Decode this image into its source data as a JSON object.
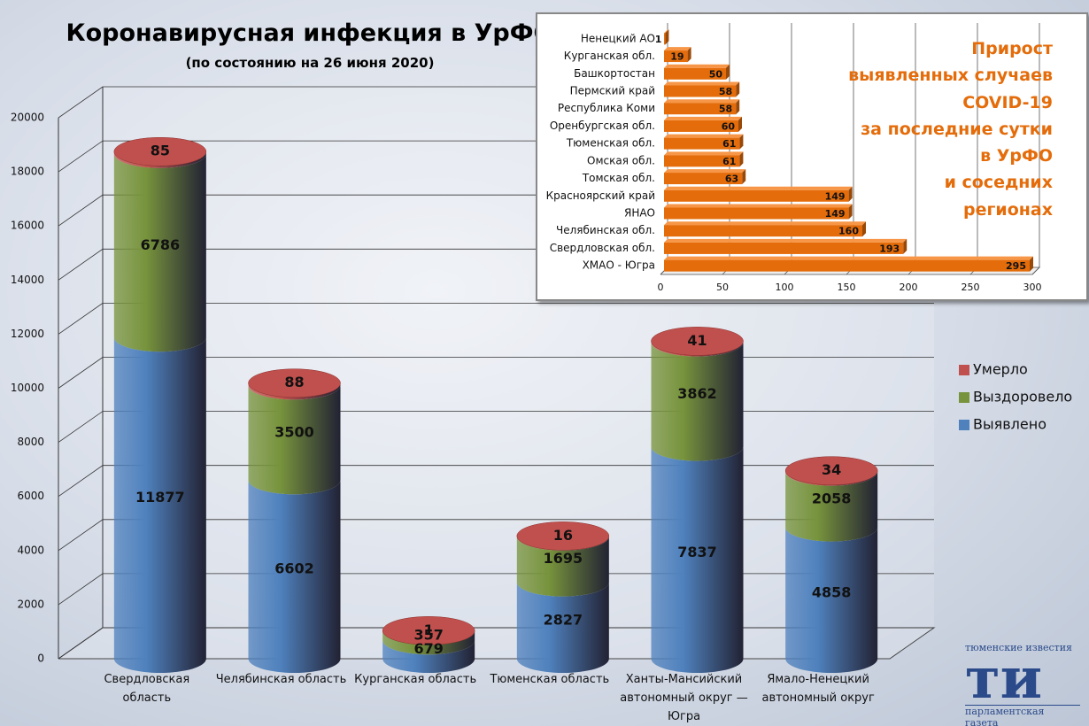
{
  "chart_data": [
    {
      "type": "bar3d_stacked",
      "title": "Коронавирусная инфекция в УрФО",
      "subtitle": "(по состоянию на 26 июня 2020)",
      "categories": [
        "Свердловская область",
        "Челябинская область",
        "Курганская область",
        "Тюменская область",
        "Ханты-Мансийский автономный округ — Югра",
        "Ямало-Ненецкий автономный округ"
      ],
      "series": [
        {
          "name": "Выявлено",
          "color": "#4f81bd",
          "values": [
            11877,
            6602,
            679,
            2827,
            7837,
            4858
          ]
        },
        {
          "name": "Выздоровело",
          "color": "#77933c",
          "values": [
            6786,
            3500,
            357,
            1695,
            3862,
            2058
          ]
        },
        {
          "name": "Умерло",
          "color": "#c0504d",
          "values": [
            85,
            88,
            1,
            16,
            41,
            34
          ]
        }
      ],
      "ylim": [
        0,
        20000
      ],
      "yticks": [
        0,
        2000,
        4000,
        6000,
        8000,
        10000,
        12000,
        14000,
        16000,
        18000,
        20000
      ],
      "grid": true,
      "legend": "right"
    },
    {
      "type": "hbar3d",
      "title": "Прирост\nвыявленных случаев\nCOVID-19\nза последние сутки\nв УрФО\nи соседних\nрегионах",
      "categories": [
        "Ненецкий АО",
        "Курганская обл.",
        "Башкортостан",
        "Пермский край",
        "Республика Коми",
        "Оренбургская обл.",
        "Тюменская обл.",
        "Омская обл.",
        "Томская обл.",
        "Красноярский край",
        "ЯНАО",
        "Челябинская обл.",
        "Свердловская обл.",
        "ХМАО - Югра"
      ],
      "values": [
        1,
        19,
        50,
        58,
        58,
        60,
        61,
        61,
        63,
        149,
        149,
        160,
        193,
        295
      ],
      "color": "#e46c0a",
      "xlim": [
        0,
        300
      ],
      "xticks": [
        0,
        50,
        100,
        150,
        200,
        250,
        300
      ],
      "grid": true
    }
  ],
  "logo": {
    "top": "тюменские известия",
    "mark": "ти",
    "bottom": "парламентская газета"
  }
}
